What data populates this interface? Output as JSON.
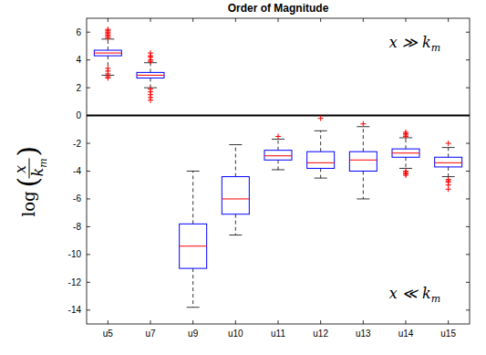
{
  "chart_data": {
    "type": "box",
    "title": "Order of Magnitude",
    "ylabel": {
      "prefix": "log",
      "open": "(",
      "numerator": "x",
      "denominator": "k",
      "denominator_subscript": "m",
      "close": ")"
    },
    "categories": [
      "u5",
      "u7",
      "u9",
      "u10",
      "u11",
      "u12",
      "u13",
      "u14",
      "u15"
    ],
    "whisker_low": [
      2.9,
      2.0,
      -13.8,
      -8.6,
      -3.9,
      -4.5,
      -6.0,
      -3.8,
      -4.4
    ],
    "q1": [
      4.3,
      2.7,
      -11.0,
      -7.1,
      -3.2,
      -3.8,
      -4.0,
      -3.0,
      -3.7
    ],
    "median": [
      4.5,
      2.9,
      -9.4,
      -6.0,
      -2.9,
      -3.4,
      -3.2,
      -2.7,
      -3.4
    ],
    "q3": [
      4.7,
      3.1,
      -7.8,
      -4.4,
      -2.5,
      -2.6,
      -2.6,
      -2.4,
      -3.0
    ],
    "whisker_high": [
      5.5,
      3.8,
      -4.0,
      -2.1,
      -1.7,
      -1.1,
      -0.8,
      -1.6,
      -2.3
    ],
    "outliers": [
      [
        5.6,
        5.7,
        5.8,
        5.9,
        6.0,
        6.1,
        6.2,
        2.7,
        2.8,
        3.0,
        3.2,
        3.4
      ],
      [
        3.9,
        4.0,
        4.2,
        4.3,
        4.5,
        1.9,
        1.7,
        1.5,
        1.3,
        1.1
      ],
      [],
      [],
      [
        -1.5
      ],
      [
        -0.2
      ],
      [
        -0.6
      ],
      [
        -1.5,
        -1.4,
        -1.3,
        -1.2,
        -4.0,
        -4.1,
        -4.2,
        -4.3
      ],
      [
        -2.0,
        -4.6,
        -4.7,
        -4.8,
        -5.0,
        -5.3
      ]
    ],
    "reference_lines": [
      0
    ],
    "annotations": [
      {
        "text": "x ≫ k",
        "subscript": "m"
      },
      {
        "text": "x ≪ k",
        "subscript": "m"
      }
    ],
    "color": "#0000ff",
    "ylim": [
      -15,
      7
    ],
    "yticks": [
      -14,
      -12,
      -10,
      -8,
      -6,
      -4,
      -2,
      0,
      2,
      4,
      6
    ],
    "grid": false
  }
}
